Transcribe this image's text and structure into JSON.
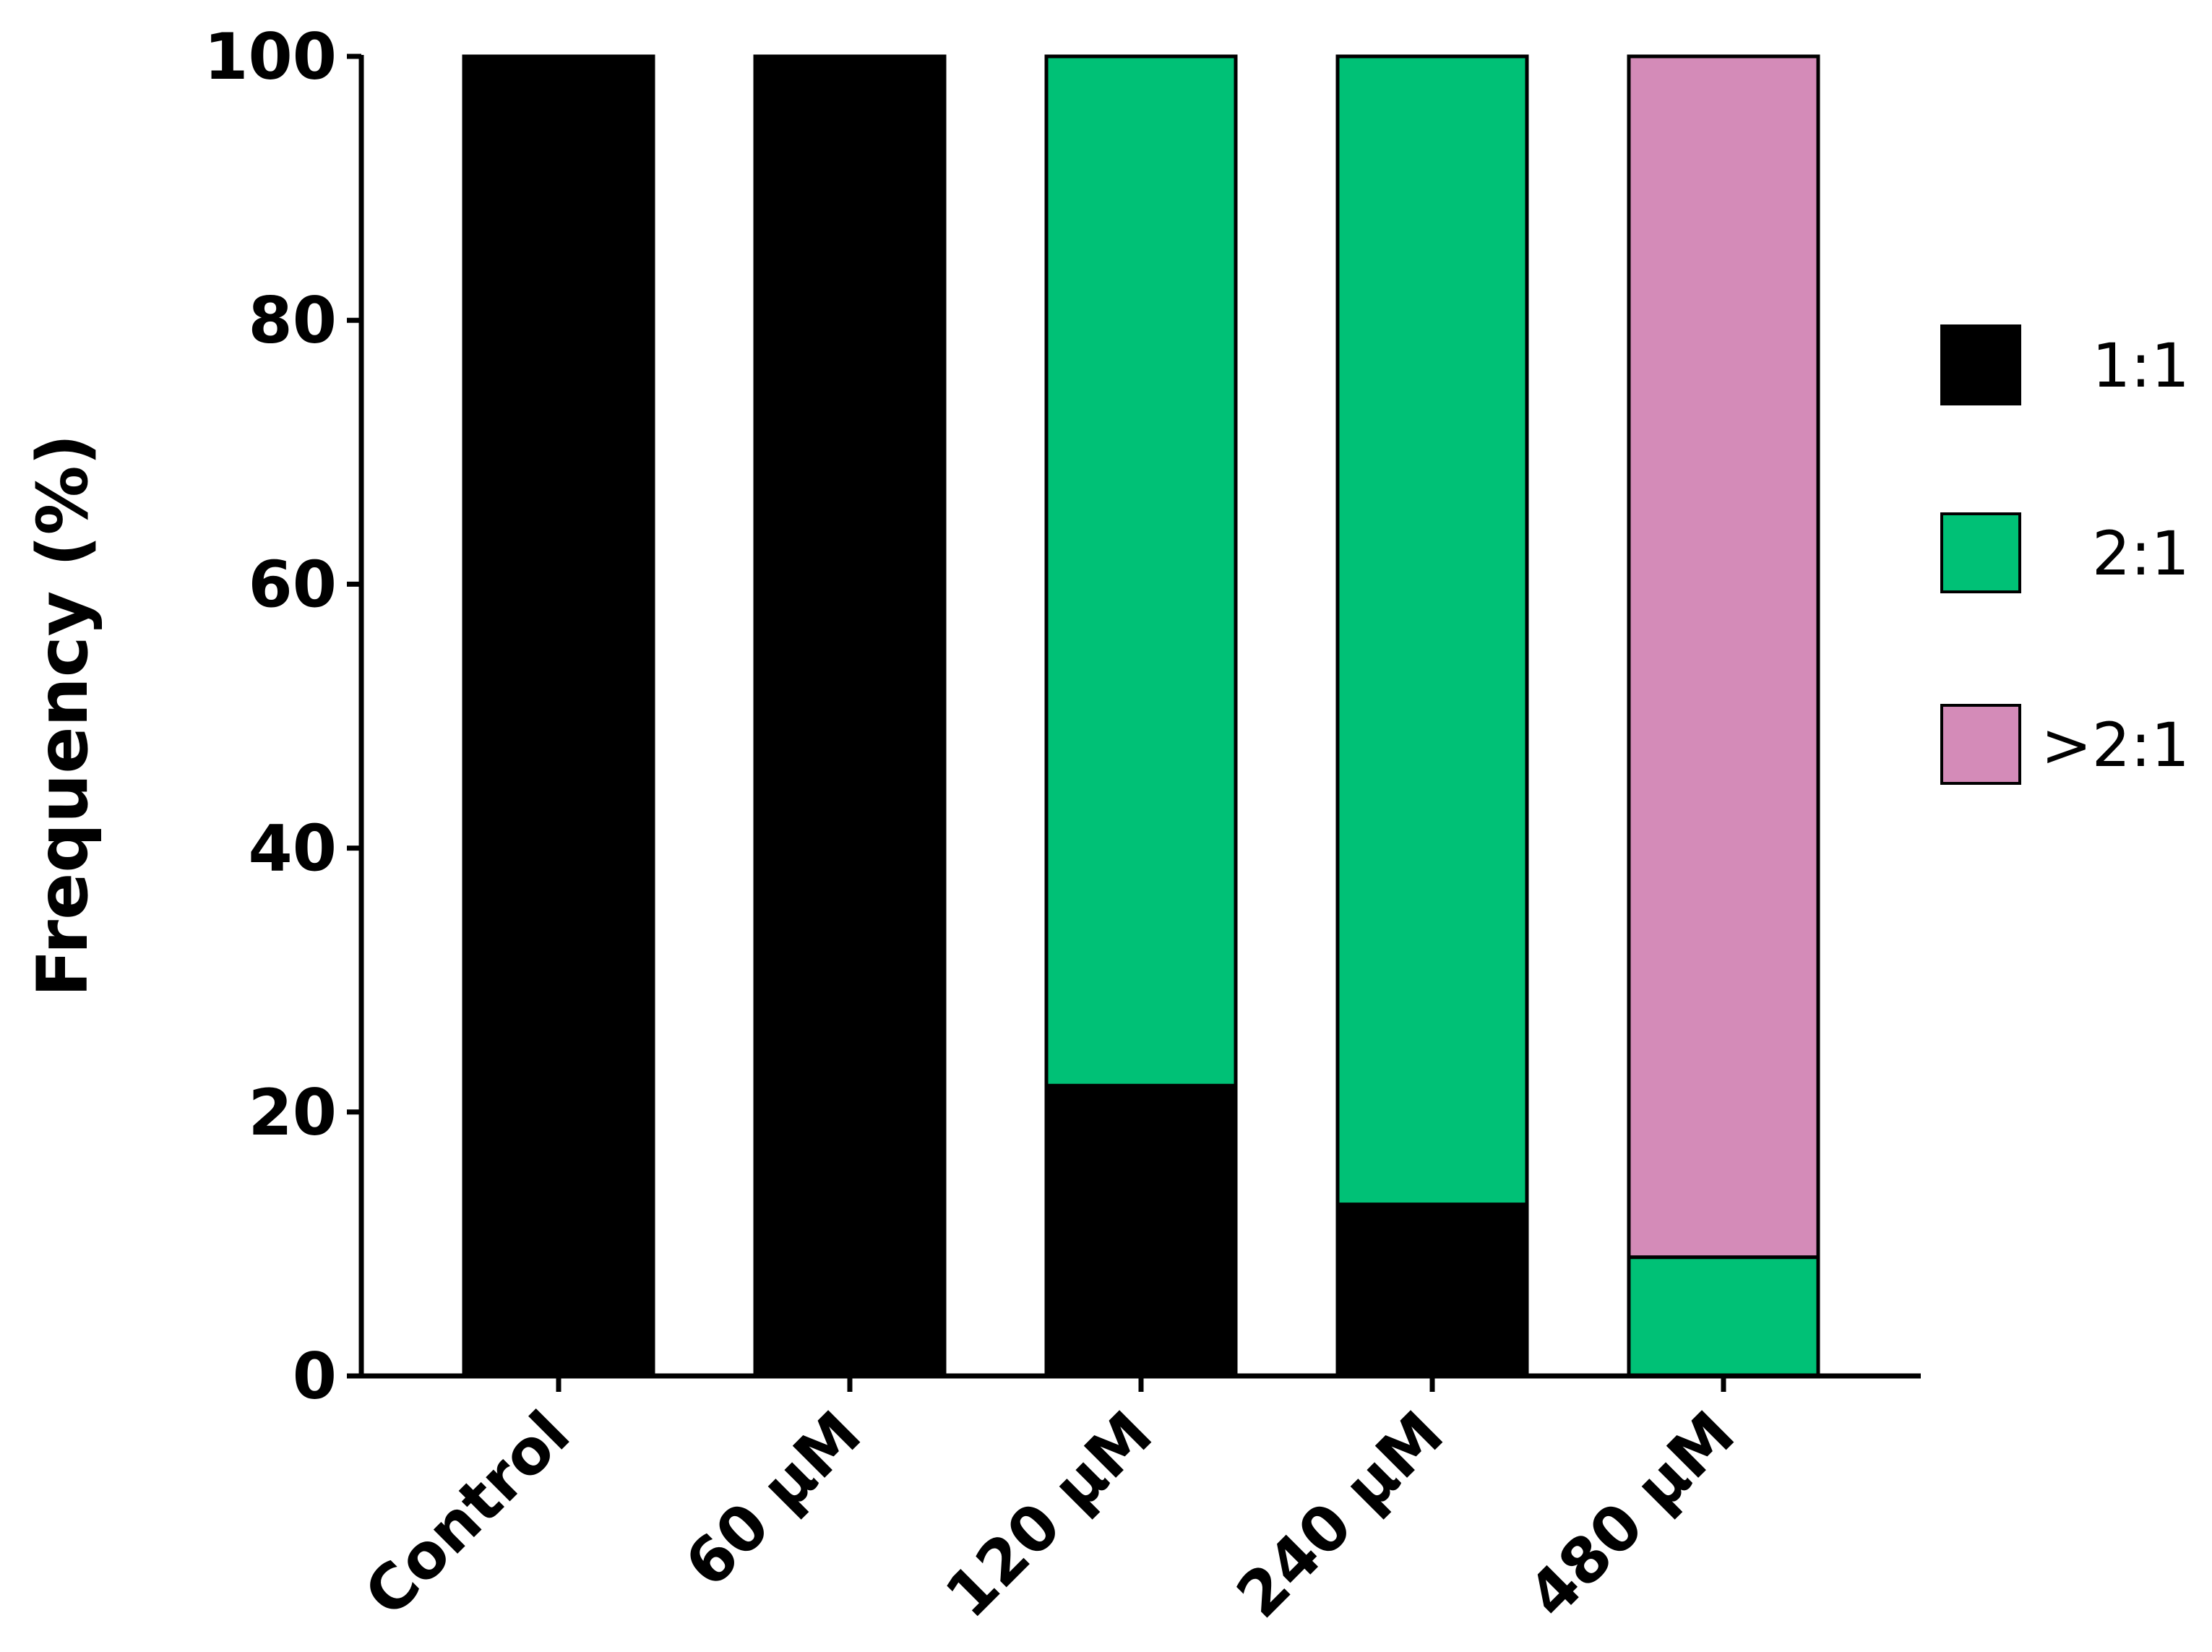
{
  "chart_data": {
    "type": "bar",
    "stacked": true,
    "title": "",
    "xlabel": "",
    "ylabel": "Frequency (%)",
    "ylim": [
      0,
      100
    ],
    "yticks": [
      "0",
      "20",
      "40",
      "60",
      "80",
      "100"
    ],
    "grid": false,
    "legend_position": "right",
    "categories": [
      "Control",
      "60 μM",
      "120 μM",
      "240 μM",
      "480 μM"
    ],
    "series": [
      {
        "name": "1:1",
        "color": "#000000",
        "values": [
          100,
          100,
          22,
          13,
          0
        ]
      },
      {
        "name": "2:1",
        "color": "#00C176",
        "values": [
          0,
          0,
          78,
          87,
          9
        ]
      },
      {
        "name": ">2:1",
        "color": "#D48BB8",
        "values": [
          0,
          0,
          0,
          0,
          91
        ]
      }
    ]
  }
}
